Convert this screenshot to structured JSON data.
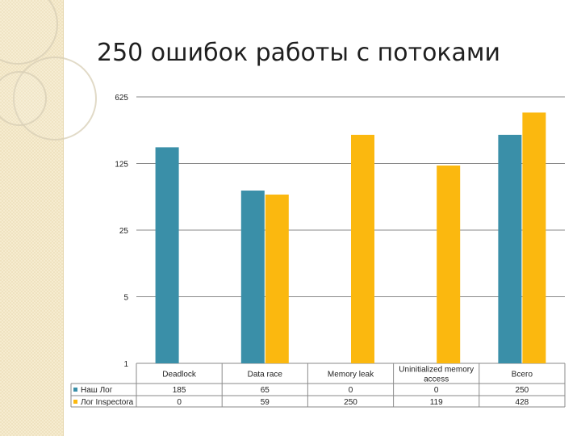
{
  "slide": {
    "title": "250 ошибок работы с потоками"
  },
  "chart_data": {
    "type": "bar",
    "title": "",
    "xlabel": "",
    "ylabel": "",
    "y_scale": "log5",
    "y_ticks": [
      1,
      5,
      25,
      125,
      625
    ],
    "ylim": [
      1,
      625
    ],
    "grid": true,
    "legend_position": "left of data table",
    "categories": [
      "Deadlock",
      "Data race",
      "Memory leak",
      "Uninitialized memory access",
      "Всего"
    ],
    "series": [
      {
        "name": "Наш Лог",
        "color": "#3a8fa8",
        "values": [
          185,
          65,
          0,
          0,
          250
        ]
      },
      {
        "name": "Лог Inspectora",
        "color": "#fbb80f",
        "values": [
          0,
          59,
          250,
          119,
          428
        ]
      }
    ]
  }
}
